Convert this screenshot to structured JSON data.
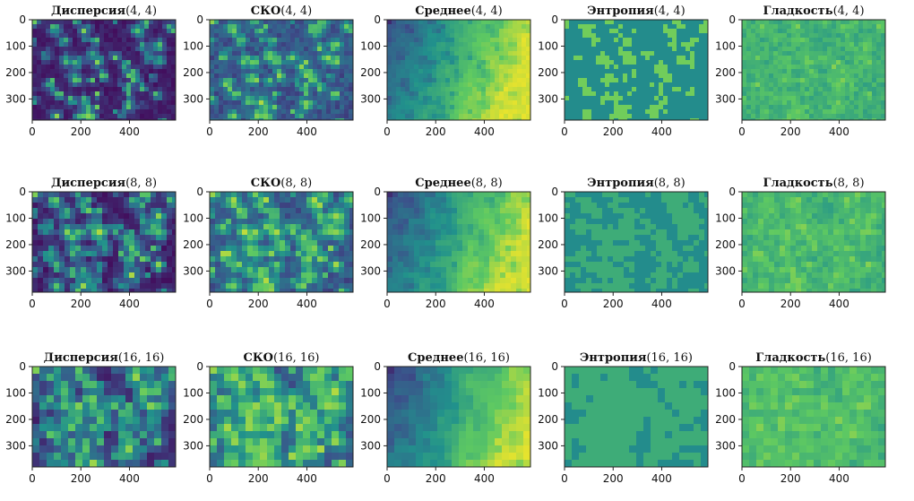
{
  "chart_data": {
    "type": "heatmap",
    "layout": {
      "rows": 3,
      "cols": 5
    },
    "rows": [
      {
        "window": "(4, 4)",
        "window_size": 4
      },
      {
        "window": "(8, 8)",
        "window_size": 8
      },
      {
        "window": "(16, 16)",
        "window_size": 16
      }
    ],
    "features": [
      {
        "name": "Дисперсия",
        "key": "variance"
      },
      {
        "name": "СКО",
        "key": "std"
      },
      {
        "name": "Среднее",
        "key": "mean"
      },
      {
        "name": "Энтропия",
        "key": "entropy"
      },
      {
        "name": "Гладкость",
        "key": "smoothness"
      }
    ],
    "xlim": [
      0,
      590
    ],
    "ylim": [
      380,
      0
    ],
    "x_ticks": [
      0,
      200,
      400
    ],
    "y_ticks": [
      0,
      100,
      200,
      300
    ],
    "x_tick_labels": [
      "0",
      "200",
      "400"
    ],
    "y_tick_labels": [
      "0",
      "100",
      "200",
      "300"
    ],
    "colormap": "viridis",
    "colormap_stops": [
      "#440154",
      "#3b528b",
      "#21918c",
      "#5ec962",
      "#fde725"
    ],
    "grid": false,
    "legend": "none"
  }
}
